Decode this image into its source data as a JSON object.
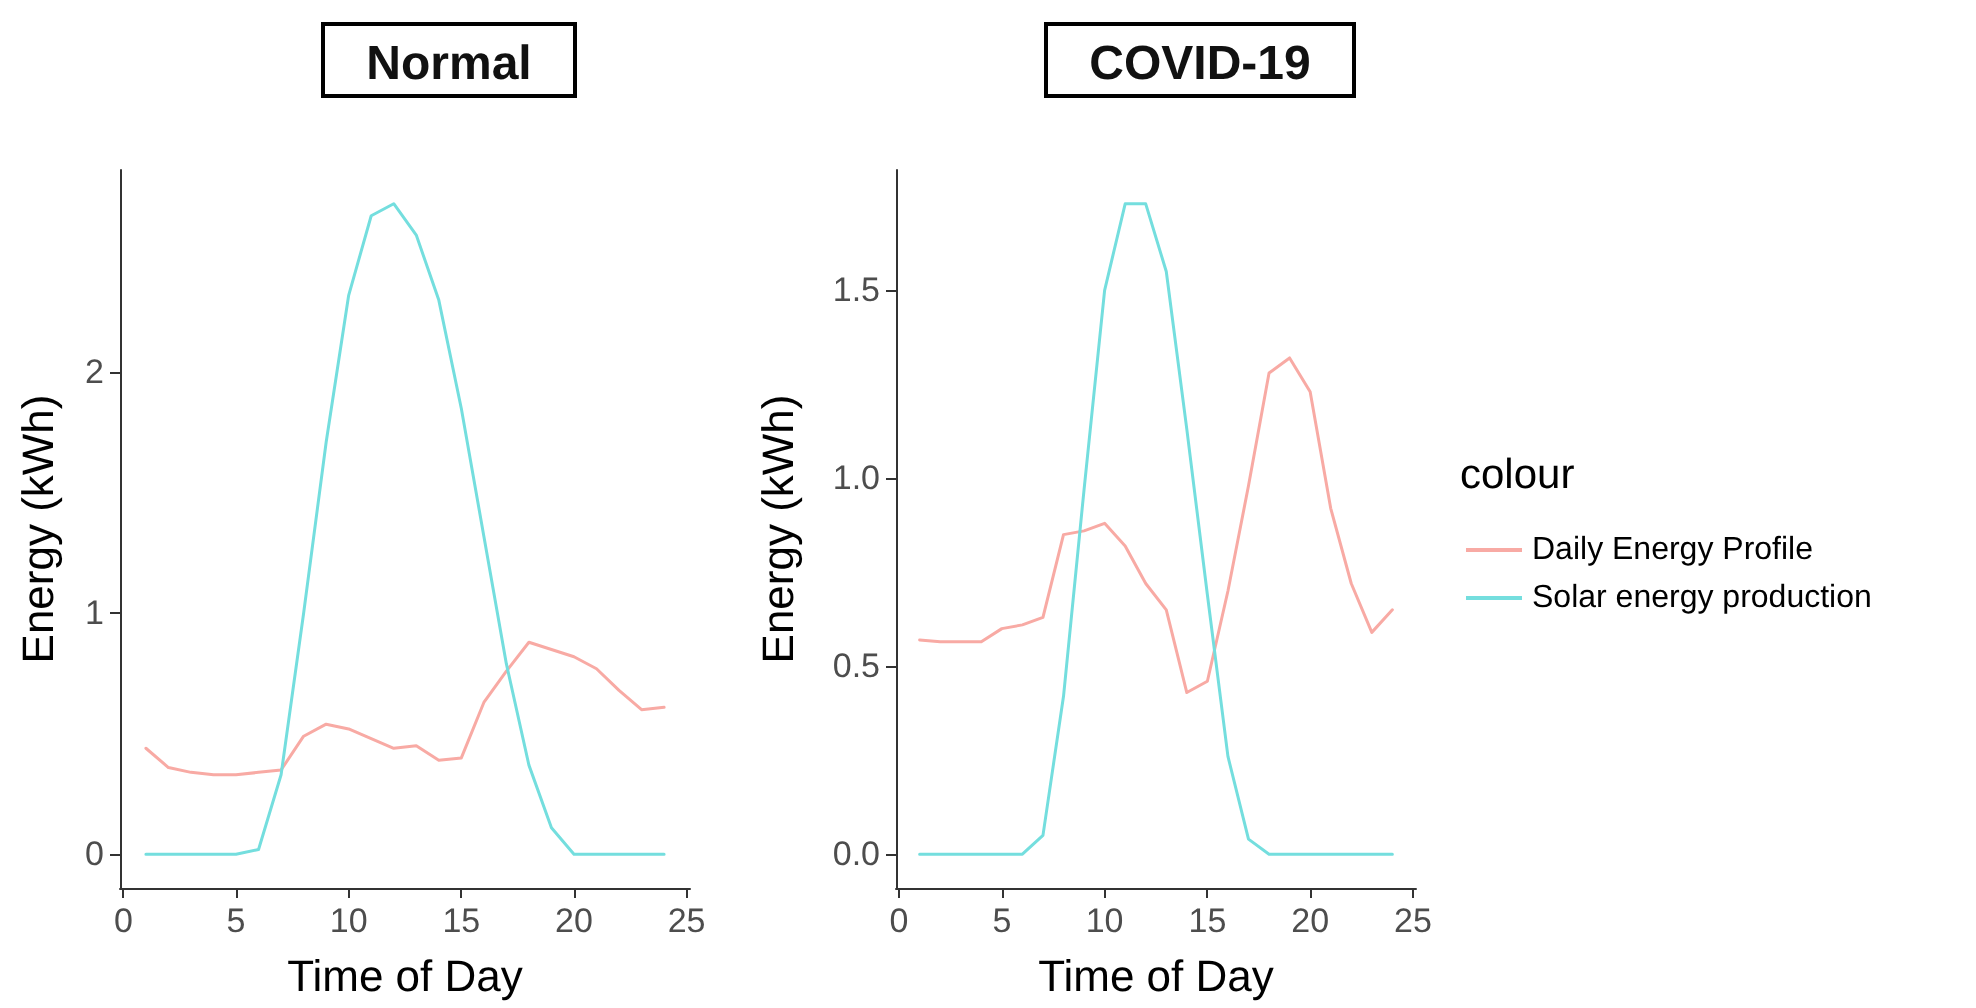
{
  "chart_data": [
    {
      "type": "line",
      "title": "Normal",
      "xlabel": "Time of Day",
      "ylabel": "Energy (kWh)",
      "x": [
        1,
        2,
        3,
        4,
        5,
        6,
        7,
        8,
        9,
        10,
        11,
        12,
        13,
        14,
        15,
        16,
        17,
        18,
        19,
        20,
        21,
        22,
        23,
        24
      ],
      "xlim": [
        -0.15,
        25.15
      ],
      "xticks": [
        0,
        5,
        10,
        15,
        20,
        25
      ],
      "ylim": [
        -0.14,
        2.84
      ],
      "yticks": [
        0,
        1,
        2
      ],
      "grid": false,
      "legend": false,
      "marker": "none",
      "series": [
        {
          "color": "#f8aaa4",
          "values": [
            0.44,
            0.36,
            0.34,
            0.33,
            0.33,
            0.34,
            0.35,
            0.49,
            0.54,
            0.52,
            0.48,
            0.44,
            0.45,
            0.39,
            0.4,
            0.63,
            0.76,
            0.88,
            0.85,
            0.82,
            0.77,
            0.68,
            0.6,
            0.61
          ]
        },
        {
          "color": "#74dede",
          "values": [
            0,
            0,
            0,
            0,
            0,
            0.02,
            0.33,
            1.0,
            1.71,
            2.32,
            2.65,
            2.7,
            2.57,
            2.3,
            1.85,
            1.32,
            0.79,
            0.37,
            0.11,
            0,
            0,
            0,
            0,
            0
          ]
        }
      ]
    },
    {
      "type": "line",
      "title": "COVID-19",
      "xlabel": "Time of Day",
      "ylabel": "Energy (kWh)",
      "legend_title": "colour",
      "x": [
        1,
        2,
        3,
        4,
        5,
        6,
        7,
        8,
        9,
        10,
        11,
        12,
        13,
        14,
        15,
        16,
        17,
        18,
        19,
        20,
        21,
        22,
        23,
        24
      ],
      "xlim": [
        -0.15,
        25.15
      ],
      "xticks": [
        0,
        5,
        10,
        15,
        20,
        25
      ],
      "ylim": [
        -0.09,
        1.82
      ],
      "yticks": [
        {
          "value": 0,
          "label": "0.0"
        },
        {
          "value": 0.5,
          "label": "0.5"
        },
        {
          "value": 1,
          "label": "1.0"
        },
        {
          "value": 1.5,
          "label": "1.5"
        }
      ],
      "grid": false,
      "legend": "right",
      "marker": "none",
      "series": [
        {
          "name": "Daily Energy Profile",
          "color": "#f8aaa4",
          "values": [
            0.57,
            0.565,
            0.565,
            0.565,
            0.6,
            0.61,
            0.63,
            0.85,
            0.86,
            0.88,
            0.82,
            0.72,
            0.65,
            0.43,
            0.46,
            0.7,
            0.98,
            1.28,
            1.32,
            1.23,
            0.92,
            0.72,
            0.59,
            0.65
          ]
        },
        {
          "name": "Solar energy production",
          "color": "#74dede",
          "values": [
            0,
            0,
            0,
            0,
            0,
            0,
            0.05,
            0.42,
            0.97,
            1.5,
            1.73,
            1.73,
            1.55,
            1.13,
            0.69,
            0.26,
            0.04,
            0,
            0,
            0,
            0,
            0,
            0,
            0
          ]
        }
      ]
    }
  ]
}
